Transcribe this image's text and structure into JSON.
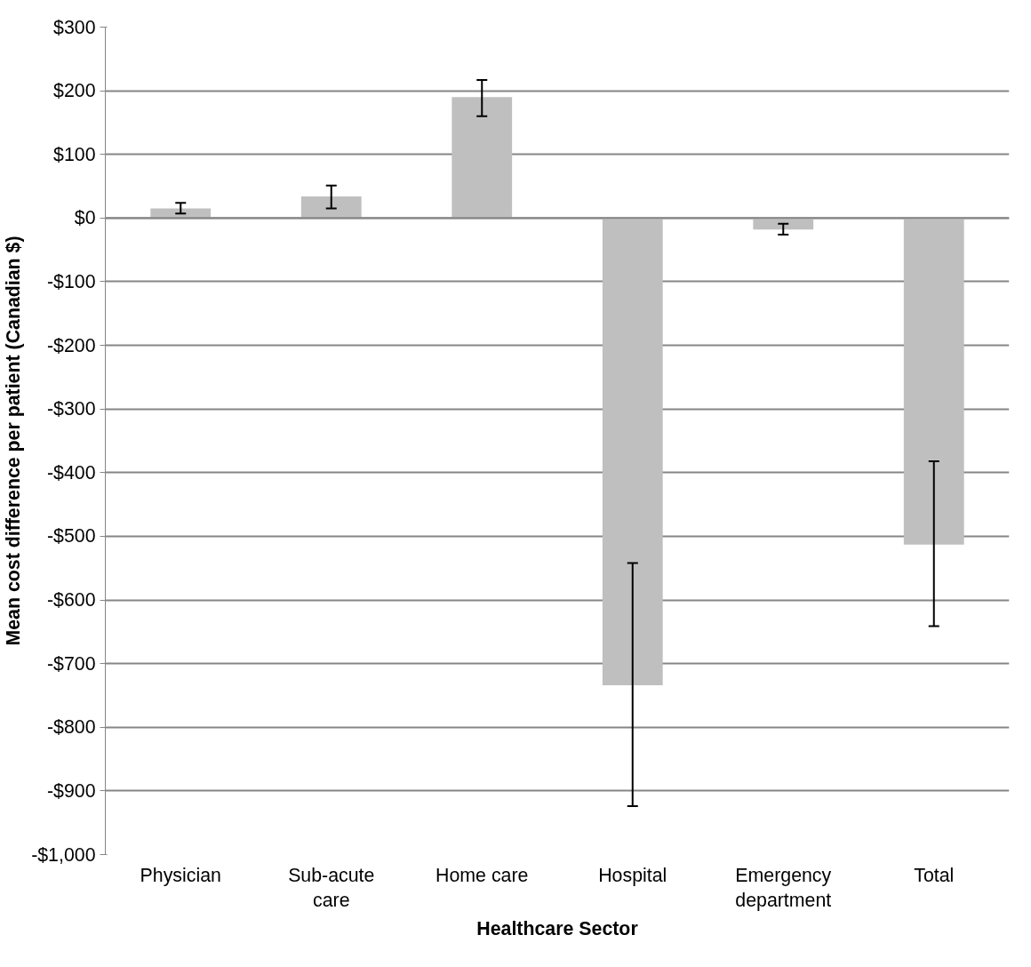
{
  "chart_data": {
    "type": "bar",
    "xlabel": "Healthcare Sector",
    "ylabel": "Mean cost difference per patient (Canadian $)",
    "categories": [
      "Physician",
      "Sub-acute care",
      "Home care",
      "Hospital",
      "Emergency department",
      "Total"
    ],
    "values": [
      15,
      34,
      190,
      -734,
      -18,
      -513
    ],
    "errors": [
      [
        7,
        24
      ],
      [
        15,
        51
      ],
      [
        160,
        217
      ],
      [
        -924,
        -542
      ],
      [
        -26,
        -9
      ],
      [
        -641,
        -382
      ]
    ],
    "color": "#bfbfbf",
    "ylim": [
      -1000,
      300
    ],
    "yticks": [
      {
        "value": -1000,
        "label": "-$1,000"
      },
      {
        "value": -900,
        "label": "-$900"
      },
      {
        "value": -800,
        "label": "-$800"
      },
      {
        "value": -700,
        "label": "-$700"
      },
      {
        "value": -600,
        "label": "-$600"
      },
      {
        "value": -500,
        "label": "-$500"
      },
      {
        "value": -400,
        "label": "-$400"
      },
      {
        "value": -300,
        "label": "-$300"
      },
      {
        "value": -200,
        "label": "-$200"
      },
      {
        "value": -100,
        "label": "-$100"
      },
      {
        "value": 0,
        "label": "$0"
      },
      {
        "value": 100,
        "label": "$100"
      },
      {
        "value": 200,
        "label": "$200"
      },
      {
        "value": 300,
        "label": "$300"
      }
    ],
    "grid": "y"
  }
}
